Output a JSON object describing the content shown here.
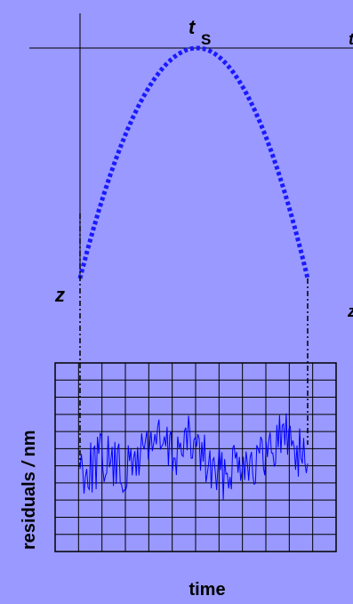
{
  "diagram": {
    "top_labels": {
      "apex_symbol": "t",
      "apex_subscript": "S",
      "cut_right": "t"
    },
    "left_labels": {
      "start_symbol": "z",
      "cut_right": "z"
    },
    "residual_plot": {
      "ylabel_text": "residuals",
      "ylabel_unit_symbol": "/",
      "ylabel_unit": "nm",
      "xlabel": "time",
      "grid_columns": 12,
      "grid_rows": 11
    },
    "colors": {
      "background": "#9999ff",
      "trajectory": "#0000ff",
      "residual_trace": "#0000ff",
      "lines": "#000000"
    }
  }
}
